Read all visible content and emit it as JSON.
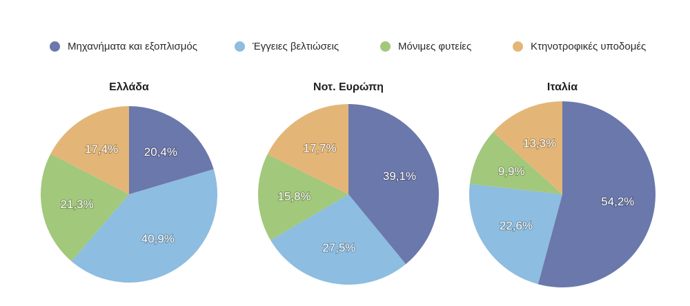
{
  "legend": [
    {
      "label": "Μηχανήματα και εξοπλισμός",
      "color": "#6b78ab"
    },
    {
      "label": "Έγγειες βελτιώσεις",
      "color": "#8dbde0"
    },
    {
      "label": "Μόνιμες φυτείες",
      "color": "#a2c87b"
    },
    {
      "label": "Κτηνοτροφικές υποδομές",
      "color": "#e3b678"
    }
  ],
  "chart_data": [
    {
      "type": "pie",
      "title": "Ελλάδα",
      "categories": [
        "Μηχανήματα και εξοπλισμός",
        "Έγγειες βελτιώσεις",
        "Μόνιμες φυτείες",
        "Κτηνοτροφικές υποδομές"
      ],
      "values": [
        20.4,
        40.9,
        21.3,
        17.4
      ],
      "labels": [
        "20,4%",
        "40,9%",
        "21,3%",
        "17,4%"
      ]
    },
    {
      "type": "pie",
      "title": "Νοτ. Ευρώπη",
      "categories": [
        "Μηχανήματα και εξοπλισμός",
        "Έγγειες βελτιώσεις",
        "Μόνιμες φυτείες",
        "Κτηνοτροφικές υποδομές"
      ],
      "values": [
        39.1,
        27.5,
        15.8,
        17.7
      ],
      "labels": [
        "39,1%",
        "27,5%",
        "15,8%",
        "17,7%"
      ]
    },
    {
      "type": "pie",
      "title": "Ιταλία",
      "categories": [
        "Μηχανήματα και εξοπλισμός",
        "Έγγειες βελτιώσεις",
        "Μόνιμες φυτείες",
        "Κτηνοτροφικές υποδομές"
      ],
      "values": [
        54.2,
        22.6,
        9.9,
        13.3
      ],
      "labels": [
        "54,2%",
        "22,6%",
        "9,9%",
        "13,3%"
      ]
    }
  ]
}
